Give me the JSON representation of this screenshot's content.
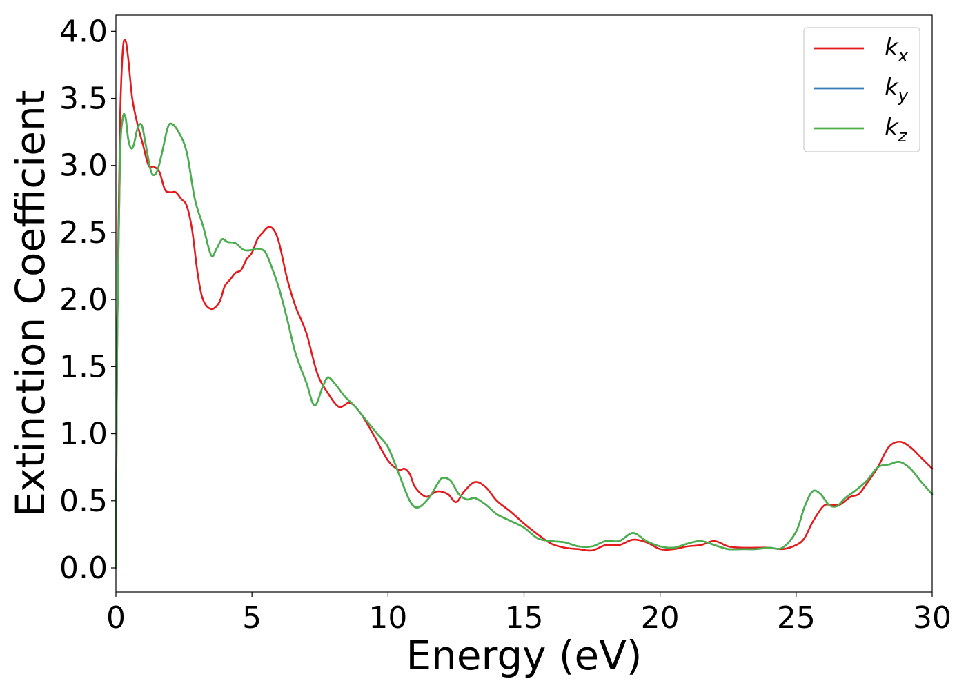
{
  "chart_data": {
    "type": "line",
    "title": "",
    "xlabel": "Energy (eV)",
    "ylabel": "Extinction Coefficient",
    "xlim": [
      0,
      30
    ],
    "ylim": [
      -0.18,
      4.12
    ],
    "xticks": [
      0,
      5,
      10,
      15,
      20,
      25,
      30
    ],
    "xtick_labels": [
      "0",
      "5",
      "10",
      "15",
      "20",
      "25",
      "30"
    ],
    "yticks": [
      0.0,
      0.5,
      1.0,
      1.5,
      2.0,
      2.5,
      3.0,
      3.5,
      4.0
    ],
    "ytick_labels": [
      "0.0",
      "0.5",
      "1.0",
      "1.5",
      "2.0",
      "2.5",
      "3.0",
      "3.5",
      "4.0"
    ],
    "grid": false,
    "legend_position": "top-right",
    "series": [
      {
        "name": "k_x",
        "label_main": "k",
        "label_sub": "x",
        "color": "#e41a1c",
        "x": [
          0,
          0.05,
          0.15,
          0.25,
          0.35,
          0.45,
          0.6,
          0.8,
          1.0,
          1.2,
          1.4,
          1.6,
          1.8,
          2.0,
          2.2,
          2.4,
          2.6,
          2.8,
          3.0,
          3.2,
          3.5,
          3.8,
          4.0,
          4.2,
          4.4,
          4.6,
          4.8,
          5.0,
          5.2,
          5.4,
          5.6,
          5.8,
          6.0,
          6.3,
          6.6,
          7.0,
          7.4,
          7.8,
          8.2,
          8.6,
          9.0,
          9.5,
          10.0,
          10.4,
          10.6,
          10.8,
          11.0,
          11.4,
          11.8,
          12.2,
          12.5,
          12.8,
          13.2,
          13.6,
          14.0,
          14.5,
          15.0,
          15.5,
          16.0,
          16.5,
          17.0,
          17.5,
          18.0,
          18.5,
          19.0,
          19.5,
          20.0,
          20.5,
          21.0,
          21.5,
          22.0,
          22.5,
          23.0,
          23.5,
          24.0,
          24.5,
          25.0,
          25.3,
          25.6,
          26.0,
          26.3,
          26.6,
          27.0,
          27.3,
          27.6,
          28.0,
          28.4,
          28.8,
          29.2,
          29.6,
          30.0
        ],
        "y": [
          0.0,
          1.8,
          3.3,
          3.85,
          3.93,
          3.8,
          3.5,
          3.3,
          3.15,
          3.0,
          2.99,
          2.95,
          2.82,
          2.8,
          2.8,
          2.75,
          2.7,
          2.52,
          2.2,
          2.0,
          1.93,
          1.98,
          2.1,
          2.15,
          2.2,
          2.22,
          2.3,
          2.35,
          2.45,
          2.5,
          2.54,
          2.52,
          2.42,
          2.15,
          1.95,
          1.75,
          1.45,
          1.3,
          1.2,
          1.23,
          1.15,
          0.98,
          0.8,
          0.73,
          0.74,
          0.7,
          0.6,
          0.53,
          0.57,
          0.55,
          0.49,
          0.57,
          0.64,
          0.6,
          0.5,
          0.42,
          0.33,
          0.25,
          0.18,
          0.15,
          0.14,
          0.13,
          0.17,
          0.17,
          0.21,
          0.19,
          0.14,
          0.14,
          0.16,
          0.17,
          0.2,
          0.16,
          0.15,
          0.15,
          0.15,
          0.14,
          0.17,
          0.22,
          0.34,
          0.46,
          0.47,
          0.47,
          0.53,
          0.55,
          0.63,
          0.75,
          0.9,
          0.94,
          0.9,
          0.82,
          0.74
        ]
      },
      {
        "name": "k_y",
        "label_main": "k",
        "label_sub": "y",
        "color": "#377eb8",
        "x": [
          0,
          0.05,
          0.15,
          0.25,
          0.35,
          0.45,
          0.55,
          0.65,
          0.8,
          0.95,
          1.1,
          1.3,
          1.5,
          1.7,
          1.9,
          2.05,
          2.3,
          2.6,
          2.9,
          3.2,
          3.5,
          3.7,
          3.9,
          4.1,
          4.4,
          4.7,
          5.0,
          5.2,
          5.5,
          5.8,
          6.0,
          6.3,
          6.6,
          7.0,
          7.3,
          7.6,
          7.8,
          8.1,
          8.4,
          8.8,
          9.2,
          9.6,
          10.0,
          10.4,
          10.8,
          11.1,
          11.5,
          11.8,
          12.0,
          12.3,
          12.6,
          12.9,
          13.2,
          13.6,
          14.0,
          14.5,
          15.0,
          15.5,
          16.0,
          16.5,
          17.0,
          17.5,
          18.0,
          18.5,
          19.0,
          19.5,
          20.0,
          20.5,
          21.0,
          21.5,
          22.0,
          22.5,
          23.0,
          23.5,
          24.0,
          24.5,
          25.0,
          25.3,
          25.6,
          25.9,
          26.2,
          26.5,
          26.8,
          27.2,
          27.6,
          28.0,
          28.4,
          28.8,
          29.2,
          29.6,
          30.0
        ],
        "y": [
          0.0,
          1.8,
          3.05,
          3.35,
          3.36,
          3.2,
          3.13,
          3.15,
          3.28,
          3.3,
          3.15,
          2.95,
          2.95,
          3.1,
          3.28,
          3.31,
          3.25,
          3.1,
          2.75,
          2.55,
          2.33,
          2.38,
          2.45,
          2.43,
          2.42,
          2.37,
          2.37,
          2.38,
          2.35,
          2.2,
          2.08,
          1.85,
          1.6,
          1.38,
          1.21,
          1.35,
          1.42,
          1.36,
          1.28,
          1.2,
          1.1,
          1.0,
          0.9,
          0.7,
          0.5,
          0.45,
          0.52,
          0.62,
          0.67,
          0.65,
          0.55,
          0.51,
          0.52,
          0.47,
          0.4,
          0.35,
          0.3,
          0.22,
          0.2,
          0.19,
          0.16,
          0.16,
          0.2,
          0.2,
          0.26,
          0.2,
          0.16,
          0.15,
          0.18,
          0.2,
          0.17,
          0.14,
          0.14,
          0.14,
          0.15,
          0.15,
          0.27,
          0.45,
          0.57,
          0.55,
          0.47,
          0.46,
          0.52,
          0.58,
          0.65,
          0.75,
          0.77,
          0.79,
          0.74,
          0.64,
          0.55
        ]
      },
      {
        "name": "k_z",
        "label_main": "k",
        "label_sub": "z",
        "color": "#4daf4a",
        "x": [
          0,
          0.05,
          0.15,
          0.25,
          0.35,
          0.45,
          0.55,
          0.65,
          0.8,
          0.95,
          1.1,
          1.3,
          1.5,
          1.7,
          1.9,
          2.05,
          2.3,
          2.6,
          2.9,
          3.2,
          3.5,
          3.7,
          3.9,
          4.1,
          4.4,
          4.7,
          5.0,
          5.2,
          5.5,
          5.8,
          6.0,
          6.3,
          6.6,
          7.0,
          7.3,
          7.6,
          7.8,
          8.1,
          8.4,
          8.8,
          9.2,
          9.6,
          10.0,
          10.4,
          10.8,
          11.1,
          11.5,
          11.8,
          12.0,
          12.3,
          12.6,
          12.9,
          13.2,
          13.6,
          14.0,
          14.5,
          15.0,
          15.5,
          16.0,
          16.5,
          17.0,
          17.5,
          18.0,
          18.5,
          19.0,
          19.5,
          20.0,
          20.5,
          21.0,
          21.5,
          22.0,
          22.5,
          23.0,
          23.5,
          24.0,
          24.5,
          25.0,
          25.3,
          25.6,
          25.9,
          26.2,
          26.5,
          26.8,
          27.2,
          27.6,
          28.0,
          28.4,
          28.8,
          29.2,
          29.6,
          30.0
        ],
        "y": [
          0.0,
          1.8,
          3.05,
          3.35,
          3.36,
          3.2,
          3.13,
          3.15,
          3.28,
          3.3,
          3.15,
          2.95,
          2.95,
          3.1,
          3.28,
          3.31,
          3.25,
          3.1,
          2.75,
          2.55,
          2.33,
          2.38,
          2.45,
          2.43,
          2.42,
          2.37,
          2.37,
          2.38,
          2.35,
          2.2,
          2.08,
          1.85,
          1.6,
          1.38,
          1.21,
          1.35,
          1.42,
          1.36,
          1.28,
          1.2,
          1.1,
          1.0,
          0.9,
          0.7,
          0.5,
          0.45,
          0.52,
          0.62,
          0.67,
          0.65,
          0.55,
          0.51,
          0.52,
          0.47,
          0.4,
          0.35,
          0.3,
          0.22,
          0.2,
          0.19,
          0.16,
          0.16,
          0.2,
          0.2,
          0.26,
          0.2,
          0.16,
          0.15,
          0.18,
          0.2,
          0.17,
          0.14,
          0.14,
          0.14,
          0.15,
          0.15,
          0.27,
          0.45,
          0.57,
          0.55,
          0.47,
          0.46,
          0.52,
          0.58,
          0.65,
          0.75,
          0.77,
          0.79,
          0.74,
          0.64,
          0.55
        ]
      }
    ]
  }
}
